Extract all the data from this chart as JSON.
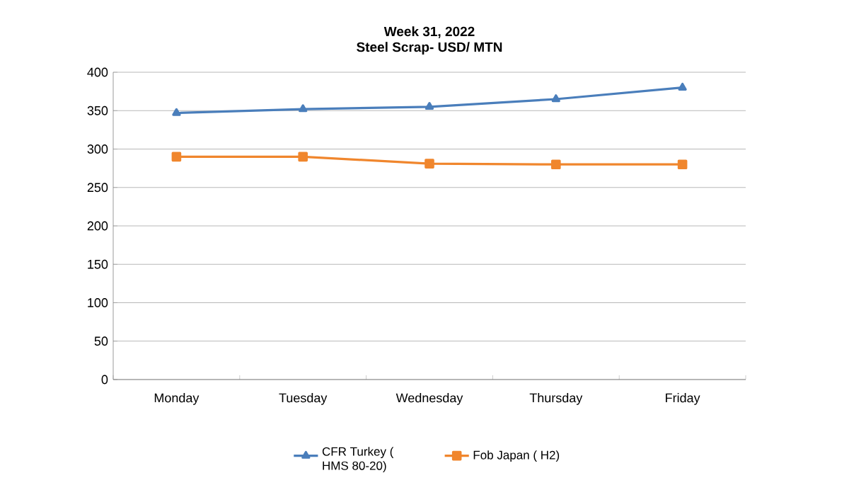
{
  "chart_data": {
    "type": "line",
    "title": "Week 31, 2022",
    "subtitle": "Steel Scrap- USD/ MTN",
    "categories": [
      "Monday",
      "Tuesday",
      "Wednesday",
      "Thursday",
      "Friday"
    ],
    "series": [
      {
        "name": "CFR Turkey ( HMS 80-20)",
        "color": "#4a7ebb",
        "marker": "triangle",
        "values": [
          347,
          352,
          355,
          365,
          380
        ]
      },
      {
        "name": "Fob Japan ( H2)",
        "color": "#f0862d",
        "marker": "square",
        "values": [
          290,
          290,
          281,
          280,
          280
        ]
      }
    ],
    "ylim": [
      0,
      400
    ],
    "yticks": [
      0,
      50,
      100,
      150,
      200,
      250,
      300,
      350,
      400
    ],
    "grid": "y",
    "legend": "bottom"
  }
}
